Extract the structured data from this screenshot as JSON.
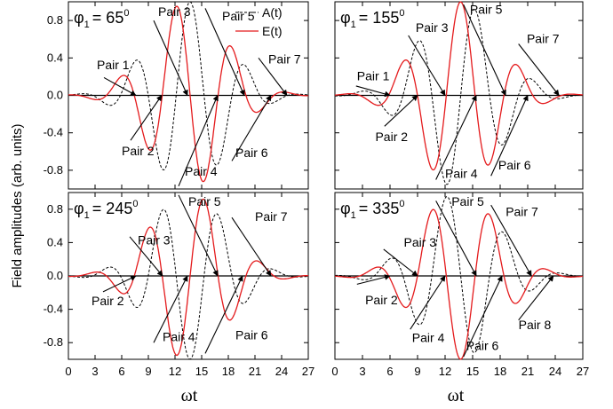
{
  "chart_data": {
    "type": "line",
    "ylabel": "Field amplitudes (arb. units)",
    "xlabel": "ωt",
    "x_ticks": [
      "0",
      "3",
      "6",
      "9",
      "12",
      "15",
      "18",
      "21",
      "24",
      "27"
    ],
    "y_ticks": [
      "0.8",
      "0.4",
      "0.0",
      "-0.4",
      "-0.8"
    ],
    "xlim": [
      0,
      27
    ],
    "ylim": [
      -1.0,
      1.0
    ],
    "legend": {
      "position": "top-right",
      "entries": [
        "A(t)",
        "E(t)"
      ]
    },
    "colors": {
      "E": "#e41a1c",
      "A": "#000000",
      "arrow": "#000000"
    },
    "panels": [
      {
        "phi_symbol": "φ",
        "phi_sub": "1",
        "phi_value": "= 65",
        "phi_sup": "0",
        "show_legend": true,
        "show_yticks": true,
        "show_xticks": false,
        "phase_deg": 65,
        "E_extrema": [
          {
            "t": 4.0,
            "y": 0.19
          },
          {
            "t": 7.0,
            "y": -0.48
          },
          {
            "t": 9.6,
            "y": 0.8
          },
          {
            "t": 12.4,
            "y": -0.97
          },
          {
            "t": 15.4,
            "y": 0.93
          },
          {
            "t": 18.4,
            "y": -0.7
          },
          {
            "t": 21.4,
            "y": 0.4
          },
          {
            "t": 23.9,
            "y": -0.1
          }
        ],
        "arrows": [
          {
            "from": [
              4.0,
              0.19
            ],
            "to": [
              7.6,
              0.0
            ]
          },
          {
            "from": [
              7.0,
              -0.48
            ],
            "to": [
              10.5,
              0.0
            ]
          },
          {
            "from": [
              9.6,
              0.8
            ],
            "to": [
              13.4,
              0.0
            ]
          },
          {
            "from": [
              12.4,
              -0.97
            ],
            "to": [
              16.8,
              0.0
            ]
          },
          {
            "from": [
              15.4,
              0.93
            ],
            "to": [
              19.8,
              0.0
            ]
          },
          {
            "from": [
              18.4,
              -0.7
            ],
            "to": [
              22.8,
              0.0
            ]
          },
          {
            "from": [
              21.4,
              0.4
            ],
            "to": [
              24.6,
              0.0
            ]
          }
        ],
        "labels": [
          {
            "text": "Pair 1",
            "x": 3.2,
            "y": 0.28
          },
          {
            "text": "Pair 2",
            "x": 6.0,
            "y": -0.64
          },
          {
            "text": "Pair 3",
            "x": 10.1,
            "y": 0.85
          },
          {
            "text": "Pair 4",
            "x": 13.1,
            "y": -0.86
          },
          {
            "text": "Pair 5",
            "x": 17.3,
            "y": 0.8
          },
          {
            "text": "Pair 6",
            "x": 18.8,
            "y": -0.66
          },
          {
            "text": "Pair 7",
            "x": 22.5,
            "y": 0.34
          }
        ]
      },
      {
        "phi_symbol": "φ",
        "phi_sub": "1",
        "phi_value": "= 155",
        "phi_sup": "0",
        "show_legend": false,
        "show_yticks": false,
        "show_xticks": false,
        "phase_deg": 155,
        "E_extrema": [
          {
            "t": 2.3,
            "y": 0.1
          },
          {
            "t": 5.4,
            "y": -0.33
          },
          {
            "t": 8.0,
            "y": 0.64
          },
          {
            "t": 11.0,
            "y": -0.9
          },
          {
            "t": 14.0,
            "y": 0.97
          },
          {
            "t": 17.0,
            "y": -0.86
          },
          {
            "t": 20.0,
            "y": 0.55
          },
          {
            "t": 22.6,
            "y": -0.28
          },
          {
            "t": 24.6,
            "y": 0.05
          }
        ],
        "arrows": [
          {
            "from": [
              2.3,
              0.1
            ],
            "to": [
              6.0,
              0.0
            ]
          },
          {
            "from": [
              5.4,
              -0.33
            ],
            "to": [
              9.0,
              0.0
            ]
          },
          {
            "from": [
              8.0,
              0.64
            ],
            "to": [
              12.0,
              0.0
            ]
          },
          {
            "from": [
              11.0,
              -0.9
            ],
            "to": [
              15.4,
              0.0
            ]
          },
          {
            "from": [
              14.0,
              0.97
            ],
            "to": [
              18.6,
              0.0
            ]
          },
          {
            "from": [
              17.0,
              -0.86
            ],
            "to": [
              21.0,
              0.0
            ]
          },
          {
            "from": [
              20.0,
              0.55
            ],
            "to": [
              24.4,
              0.0
            ]
          }
        ],
        "labels": [
          {
            "text": "Pair 1",
            "x": 2.4,
            "y": 0.16
          },
          {
            "text": "Pair 2",
            "x": 4.4,
            "y": -0.49
          },
          {
            "text": "Pair 3",
            "x": 8.8,
            "y": 0.68
          },
          {
            "text": "Pair 4",
            "x": 12.0,
            "y": -0.88
          },
          {
            "text": "Pair 5",
            "x": 14.7,
            "y": 0.87
          },
          {
            "text": "Pair 6",
            "x": 17.8,
            "y": -0.79
          },
          {
            "text": "Pair 7",
            "x": 20.9,
            "y": 0.56
          }
        ]
      },
      {
        "phi_symbol": "φ",
        "phi_sub": "1",
        "phi_value": "= 245",
        "phi_sup": "0",
        "show_legend": false,
        "show_yticks": true,
        "show_xticks": true,
        "phase_deg": 245,
        "E_extrema": [
          {
            "t": 1.3,
            "y": 0.03
          },
          {
            "t": 3.9,
            "y": -0.19
          },
          {
            "t": 6.9,
            "y": 0.47
          },
          {
            "t": 9.6,
            "y": -0.8
          },
          {
            "t": 12.4,
            "y": 0.97
          },
          {
            "t": 15.4,
            "y": -0.93
          },
          {
            "t": 18.4,
            "y": 0.7
          },
          {
            "t": 21.4,
            "y": -0.4
          },
          {
            "t": 24.0,
            "y": 0.12
          }
        ],
        "arrows": [
          {
            "from": [
              3.9,
              -0.19
            ],
            "to": [
              7.6,
              0.0
            ]
          },
          {
            "from": [
              6.9,
              0.47
            ],
            "to": [
              10.6,
              0.0
            ]
          },
          {
            "from": [
              9.6,
              -0.8
            ],
            "to": [
              13.4,
              0.0
            ]
          },
          {
            "from": [
              12.4,
              0.97
            ],
            "to": [
              16.8,
              0.0
            ]
          },
          {
            "from": [
              15.4,
              -0.93
            ],
            "to": [
              19.6,
              0.0
            ]
          },
          {
            "from": [
              18.4,
              0.7
            ],
            "to": [
              22.8,
              0.0
            ]
          }
        ],
        "labels": [
          {
            "text": "Pair 2",
            "x": 2.6,
            "y": -0.35
          },
          {
            "text": "Pair 3",
            "x": 7.8,
            "y": 0.38
          },
          {
            "text": "Pair 4",
            "x": 10.6,
            "y": -0.78
          },
          {
            "text": "Pair 5",
            "x": 13.5,
            "y": 0.84
          },
          {
            "text": "Pair 6",
            "x": 18.8,
            "y": -0.76
          },
          {
            "text": "Pair 7",
            "x": 21.0,
            "y": 0.66
          }
        ]
      },
      {
        "phi_symbol": "φ",
        "phi_sub": "1",
        "phi_value": "= 335",
        "phi_sup": "0",
        "show_legend": false,
        "show_yticks": false,
        "show_xticks": true,
        "phase_deg": 335,
        "E_extrema": [
          {
            "t": 2.4,
            "y": -0.1
          },
          {
            "t": 5.3,
            "y": 0.32
          },
          {
            "t": 8.2,
            "y": -0.64
          },
          {
            "t": 11.0,
            "y": 0.9
          },
          {
            "t": 14.0,
            "y": -0.97
          },
          {
            "t": 17.0,
            "y": 0.85
          },
          {
            "t": 20.0,
            "y": -0.53
          },
          {
            "t": 22.6,
            "y": 0.23
          }
        ],
        "arrows": [
          {
            "from": [
              2.4,
              -0.1
            ],
            "to": [
              6.0,
              0.0
            ]
          },
          {
            "from": [
              5.3,
              0.32
            ],
            "to": [
              9.0,
              0.0
            ]
          },
          {
            "from": [
              8.2,
              -0.64
            ],
            "to": [
              12.0,
              0.0
            ]
          },
          {
            "from": [
              11.0,
              0.9
            ],
            "to": [
              15.4,
              0.0
            ]
          },
          {
            "from": [
              14.0,
              -0.97
            ],
            "to": [
              18.2,
              0.0
            ]
          },
          {
            "from": [
              17.0,
              0.85
            ],
            "to": [
              21.4,
              0.0
            ]
          },
          {
            "from": [
              20.0,
              -0.53
            ],
            "to": [
              23.8,
              0.0
            ]
          }
        ],
        "labels": [
          {
            "text": "Pair 2",
            "x": 3.3,
            "y": -0.34
          },
          {
            "text": "Pair 3",
            "x": 7.5,
            "y": 0.35
          },
          {
            "text": "Pair 4",
            "x": 8.4,
            "y": -0.79
          },
          {
            "text": "Pair 5",
            "x": 12.7,
            "y": 0.84
          },
          {
            "text": "Pair 6",
            "x": 14.3,
            "y": -0.89
          },
          {
            "text": "Pair 7",
            "x": 18.6,
            "y": 0.72
          },
          {
            "text": "Pair 8",
            "x": 20.0,
            "y": -0.64
          }
        ]
      }
    ]
  }
}
